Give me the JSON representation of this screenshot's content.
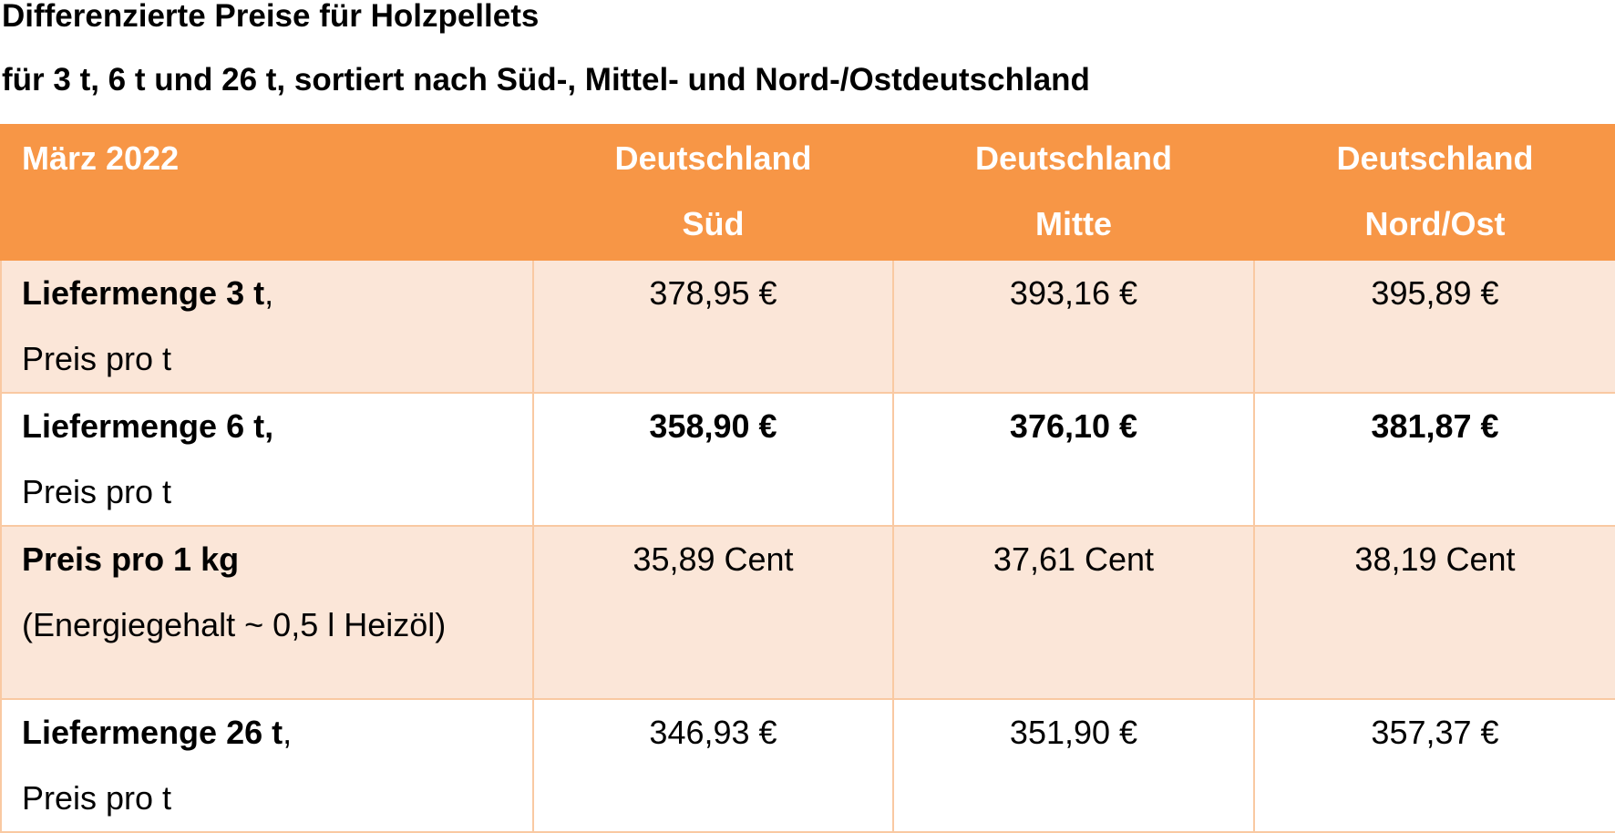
{
  "title": "Differenzierte Preise für Holzpellets",
  "subtitle": "für 3 t, 6 t und 26 t, sortiert nach Süd-, Mittel- und Nord-/Ostdeutschland",
  "table": {
    "header": {
      "period": "März 2022",
      "columns": [
        {
          "line1": "Deutschland",
          "line2": "Süd"
        },
        {
          "line1": "Deutschland",
          "line2": "Mitte"
        },
        {
          "line1": "Deutschland",
          "line2": "Nord/Ost"
        }
      ]
    },
    "rows": [
      {
        "label_main": "Liefermenge 3 t",
        "label_suffix": ",",
        "label_sub": "Preis pro t",
        "values": [
          "378,95 €",
          "393,16 €",
          "395,89 €"
        ]
      },
      {
        "label_main": "Liefermenge 6 t,",
        "label_suffix": "",
        "label_sub": "Preis pro t",
        "values": [
          "358,90 €",
          "376,10 €",
          "381,87 €"
        ]
      },
      {
        "label_main": "Preis pro 1 kg",
        "label_suffix": "",
        "label_sub": "(Energiegehalt ~ 0,5 l Heizöl)",
        "values": [
          "35,89 Cent",
          "37,61 Cent",
          "38,19 Cent"
        ]
      },
      {
        "label_main": "Liefermenge 26 t",
        "label_suffix": ",",
        "label_sub": "Preis pro t",
        "values": [
          "346,93 €",
          "351,90 €",
          "357,37 €"
        ]
      }
    ]
  },
  "colors": {
    "header_bg": "#f79646",
    "shaded_row_bg": "#fbe6d8",
    "border": "#f9c9a2"
  }
}
